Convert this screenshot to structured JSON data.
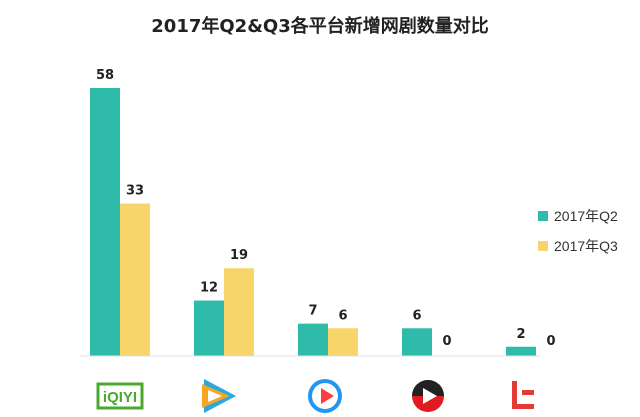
{
  "chart_data": {
    "type": "bar",
    "title": "2017年Q2&Q3各平台新增网剧数量对比",
    "categories": [
      "iqiyi-logo",
      "tencent-video-logo",
      "youku-logo",
      "sohu-video-logo",
      "letv-logo"
    ],
    "series": [
      {
        "name": "2017年Q2",
        "values": [
          58,
          12,
          7,
          6,
          2
        ],
        "color": "#2ebbaa"
      },
      {
        "name": "2017年Q3",
        "values": [
          33,
          19,
          6,
          0,
          0
        ],
        "color": "#f7d56b"
      }
    ],
    "ylim": [
      0,
      60
    ],
    "grid": false,
    "legend": "right"
  },
  "legend": {
    "q2_label": "2017年Q2",
    "q3_label": "2017年Q3"
  },
  "logos": {
    "iqiyi": "iQIYI"
  }
}
